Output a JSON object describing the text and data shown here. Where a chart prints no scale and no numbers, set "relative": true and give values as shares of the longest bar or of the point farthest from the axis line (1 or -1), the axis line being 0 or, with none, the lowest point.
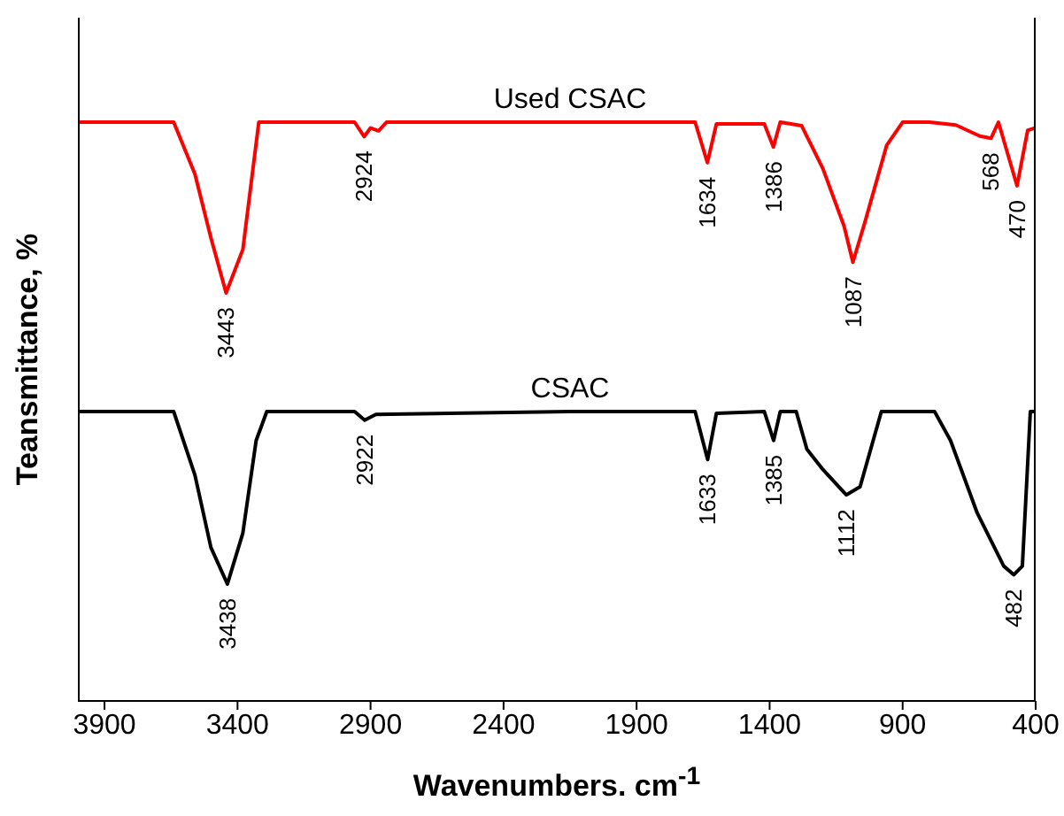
{
  "chart_data": {
    "type": "line",
    "relative": true,
    "xlabel": "Wavenumbers. cm$^{-1}$",
    "ylabel": "Teansmittance, %",
    "xlim": [
      4000,
      400
    ],
    "xticks": [
      3900,
      3400,
      2900,
      2400,
      1900,
      1400,
      900,
      400
    ],
    "marker": "none",
    "line_style": "solid",
    "series": [
      {
        "name": "Used CSAC",
        "color": "#ff0000",
        "x": [
          4000,
          3640,
          3560,
          3500,
          3443,
          3380,
          3320,
          2960,
          2924,
          2900,
          2870,
          2840,
          2150,
          1680,
          1634,
          1600,
          1420,
          1386,
          1360,
          1280,
          1200,
          1120,
          1087,
          1040,
          960,
          900,
          800,
          700,
          610,
          568,
          540,
          470,
          430,
          400
        ],
        "values": [
          1,
          1,
          0.91,
          0.8,
          0.705,
          0.78,
          1,
          1,
          0.975,
          0.99,
          0.985,
          1,
          1,
          1,
          0.93,
          0.997,
          0.997,
          0.957,
          1,
          0.994,
          0.92,
          0.82,
          0.758,
          0.83,
          0.96,
          1,
          1,
          0.995,
          0.976,
          0.972,
          1,
          0.89,
          0.986,
          0.99
        ]
      },
      {
        "name": "CSAC",
        "color": "#000000",
        "x": [
          4000,
          3640,
          3560,
          3500,
          3438,
          3380,
          3330,
          3290,
          2960,
          2922,
          2880,
          2150,
          1680,
          1633,
          1600,
          1420,
          1385,
          1360,
          1300,
          1260,
          1200,
          1112,
          1060,
          980,
          780,
          720,
          620,
          520,
          482,
          450,
          420,
          400
        ],
        "values": [
          0.5,
          0.5,
          0.39,
          0.265,
          0.202,
          0.29,
          0.45,
          0.5,
          0.5,
          0.485,
          0.495,
          0.5,
          0.5,
          0.417,
          0.497,
          0.5,
          0.45,
          0.5,
          0.5,
          0.435,
          0.4,
          0.356,
          0.37,
          0.5,
          0.5,
          0.45,
          0.325,
          0.233,
          0.218,
          0.233,
          0.5,
          0.5
        ]
      }
    ],
    "annotations": [
      {
        "text": "3443",
        "x": 3443,
        "y": 0.705
      },
      {
        "text": "2924",
        "x": 2924,
        "y": 0.975
      },
      {
        "text": "1634",
        "x": 1634,
        "y": 0.93
      },
      {
        "text": "1386",
        "x": 1386,
        "y": 0.957
      },
      {
        "text": "1087",
        "x": 1087,
        "y": 0.758
      },
      {
        "text": "568",
        "x": 568,
        "y": 0.972
      },
      {
        "text": "470",
        "x": 470,
        "y": 0.89
      },
      {
        "text": "3438",
        "x": 3438,
        "y": 0.202
      },
      {
        "text": "2922",
        "x": 2922,
        "y": 0.485
      },
      {
        "text": "1633",
        "x": 1633,
        "y": 0.417
      },
      {
        "text": "1385",
        "x": 1385,
        "y": 0.45
      },
      {
        "text": "1112",
        "x": 1112,
        "y": 0.356
      },
      {
        "text": "482",
        "x": 482,
        "y": 0.218
      }
    ]
  }
}
